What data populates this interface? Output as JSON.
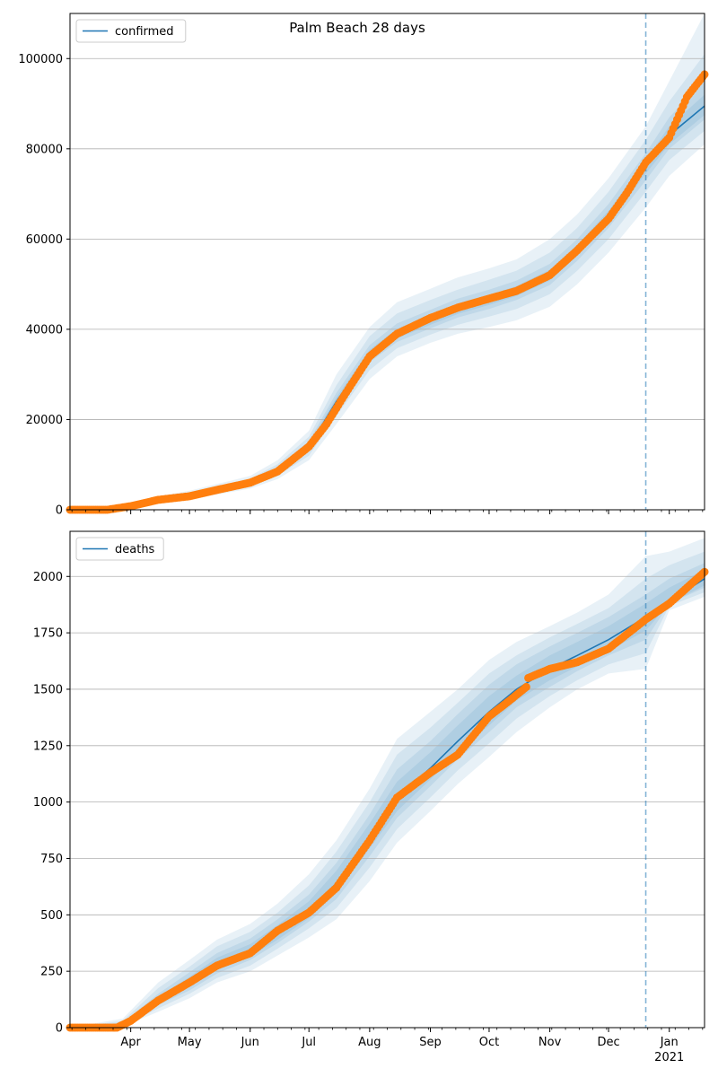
{
  "title": "Palm Beach 28 days",
  "colors": {
    "model": "#1f77b4",
    "observed": "#ff7f0e",
    "band": "#1f77b4",
    "grid": "#b0b0b0",
    "forecast_line": "#1f77b4"
  },
  "x_axis": {
    "start": "2020-03-01",
    "end": "2021-01-19",
    "month_ticks": [
      {
        "date": "2020-04-01",
        "label": "Apr"
      },
      {
        "date": "2020-05-01",
        "label": "May"
      },
      {
        "date": "2020-06-01",
        "label": "Jun"
      },
      {
        "date": "2020-07-01",
        "label": "Jul"
      },
      {
        "date": "2020-08-01",
        "label": "Aug"
      },
      {
        "date": "2020-09-01",
        "label": "Sep"
      },
      {
        "date": "2020-10-01",
        "label": "Oct"
      },
      {
        "date": "2020-11-01",
        "label": "Nov"
      },
      {
        "date": "2020-12-01",
        "label": "Dec"
      },
      {
        "date": "2021-01-01",
        "label": "Jan"
      }
    ],
    "year_label": "2021",
    "forecast_start": "2020-12-20"
  },
  "chart_data": [
    {
      "type": "line",
      "legend": "confirmed",
      "legend_position": "top-left",
      "grid": true,
      "ylim": [
        0,
        110000
      ],
      "yticks": [
        0,
        20000,
        40000,
        60000,
        80000,
        100000
      ],
      "model": {
        "dates": [
          "2020-03-01",
          "2020-03-15",
          "2020-04-01",
          "2020-04-15",
          "2020-05-01",
          "2020-05-15",
          "2020-06-01",
          "2020-06-15",
          "2020-07-01",
          "2020-07-15",
          "2020-08-01",
          "2020-08-15",
          "2020-09-01",
          "2020-09-15",
          "2020-10-01",
          "2020-10-15",
          "2020-11-01",
          "2020-11-15",
          "2020-12-01",
          "2020-12-20",
          "2021-01-01",
          "2021-01-19"
        ],
        "values": [
          0,
          100,
          900,
          2200,
          3200,
          4500,
          6000,
          8800,
          14000,
          24000,
          34500,
          39000,
          42000,
          44500,
          46500,
          48500,
          52000,
          57500,
          65000,
          76000,
          83000,
          89500
        ]
      },
      "bands": [
        {
          "upper": [
            0,
            200,
            1400,
            3000,
            4200,
            5700,
            7500,
            11000,
            17500,
            30000,
            40500,
            46000,
            49000,
            51500,
            53500,
            55500,
            60000,
            65500,
            73500,
            85000,
            95000,
            110000
          ],
          "lower": [
            0,
            50,
            600,
            1600,
            2400,
            3400,
            4700,
            6800,
            11000,
            19000,
            29000,
            34000,
            37000,
            39000,
            40500,
            42000,
            45000,
            50000,
            57000,
            67000,
            74000,
            81000
          ]
        },
        {
          "upper": [
            0,
            170,
            1200,
            2700,
            3800,
            5200,
            6900,
            10100,
            16200,
            27600,
            38500,
            43500,
            46500,
            48800,
            51000,
            53000,
            57000,
            62500,
            70500,
            82000,
            90500,
            101000
          ],
          "lower": [
            0,
            70,
            700,
            1800,
            2700,
            3800,
            5200,
            7500,
            12000,
            20800,
            31000,
            35800,
            38800,
            41000,
            42800,
            44500,
            47800,
            53000,
            60000,
            70500,
            77500,
            84000
          ]
        },
        {
          "upper": [
            0,
            140,
            1100,
            2500,
            3600,
            4900,
            6500,
            9500,
            15200,
            25900,
            36500,
            41300,
            44300,
            46800,
            48800,
            50800,
            54500,
            60000,
            67800,
            79000,
            87000,
            95000
          ],
          "lower": [
            0,
            80,
            800,
            2000,
            2900,
            4100,
            5600,
            8100,
            12900,
            22300,
            32700,
            37200,
            40200,
            42600,
            44500,
            46500,
            49800,
            55200,
            62500,
            73000,
            80000,
            86500
          ]
        },
        {
          "upper": [
            0,
            120,
            1000,
            2350,
            3400,
            4700,
            6250,
            9150,
            14600,
            24900,
            35500,
            40100,
            43100,
            45600,
            47600,
            49600,
            53200,
            58700,
            66300,
            77500,
            85000,
            92000
          ],
          "lower": [
            0,
            90,
            850,
            2100,
            3050,
            4300,
            5800,
            8450,
            13400,
            23100,
            33500,
            38000,
            41000,
            43400,
            45400,
            47400,
            50800,
            56300,
            63700,
            74500,
            81000,
            87500
          ]
        }
      ],
      "observed": {
        "dates": [
          "2020-03-01",
          "2020-03-20",
          "2020-04-01",
          "2020-04-15",
          "2020-05-01",
          "2020-05-15",
          "2020-06-01",
          "2020-06-15",
          "2020-07-01",
          "2020-07-10",
          "2020-07-20",
          "2020-08-01",
          "2020-08-15",
          "2020-09-01",
          "2020-09-15",
          "2020-10-01",
          "2020-10-15",
          "2020-11-01",
          "2020-11-15",
          "2020-12-01",
          "2020-12-10",
          "2020-12-20",
          "2021-01-01",
          "2021-01-05",
          "2021-01-10",
          "2021-01-19"
        ],
        "values": [
          0,
          0,
          800,
          2200,
          3000,
          4400,
          6000,
          8500,
          14000,
          19000,
          26000,
          34000,
          39000,
          42500,
          44800,
          46800,
          48500,
          52000,
          57500,
          64500,
          70000,
          77000,
          82500,
          86500,
          91500,
          96500
        ]
      }
    },
    {
      "type": "line",
      "legend": "deaths",
      "legend_position": "top-left",
      "grid": true,
      "ylim": [
        0,
        2200
      ],
      "yticks": [
        0,
        250,
        500,
        750,
        1000,
        1250,
        1500,
        1750,
        2000
      ],
      "model": {
        "dates": [
          "2020-03-01",
          "2020-03-28",
          "2020-04-15",
          "2020-05-01",
          "2020-05-15",
          "2020-06-01",
          "2020-06-15",
          "2020-07-01",
          "2020-07-15",
          "2020-08-01",
          "2020-08-15",
          "2020-09-01",
          "2020-09-15",
          "2020-10-01",
          "2020-10-15",
          "2020-11-01",
          "2020-11-15",
          "2020-12-01",
          "2020-12-20",
          "2021-01-01",
          "2021-01-19"
        ],
        "values": [
          0,
          10,
          120,
          200,
          280,
          340,
          420,
          520,
          640,
          850,
          1020,
          1150,
          1270,
          1400,
          1500,
          1590,
          1650,
          1720,
          1820,
          1890,
          1990
        ]
      },
      "bands": [
        {
          "upper": [
            0,
            40,
            200,
            300,
            390,
            460,
            550,
            680,
            830,
            1060,
            1280,
            1400,
            1500,
            1630,
            1710,
            1780,
            1840,
            1920,
            2090,
            2110,
            2170
          ],
          "lower": [
            0,
            5,
            70,
            130,
            200,
            250,
            320,
            400,
            480,
            650,
            820,
            960,
            1080,
            1200,
            1310,
            1420,
            1500,
            1570,
            1590,
            1850,
            1910
          ]
        },
        {
          "upper": [
            0,
            30,
            175,
            270,
            360,
            425,
            510,
            630,
            780,
            1000,
            1210,
            1330,
            1440,
            1570,
            1650,
            1730,
            1790,
            1860,
            1990,
            2050,
            2110
          ],
          "lower": [
            0,
            7,
            85,
            150,
            220,
            275,
            350,
            440,
            530,
            710,
            880,
            1020,
            1140,
            1260,
            1370,
            1470,
            1540,
            1610,
            1660,
            1870,
            1930
          ]
        },
        {
          "upper": [
            0,
            22,
            150,
            245,
            330,
            395,
            480,
            590,
            730,
            945,
            1145,
            1270,
            1390,
            1520,
            1610,
            1690,
            1750,
            1820,
            1920,
            1990,
            2060
          ],
          "lower": [
            0,
            8,
            100,
            165,
            240,
            300,
            375,
            470,
            570,
            760,
            930,
            1070,
            1190,
            1310,
            1420,
            1510,
            1580,
            1650,
            1720,
            1880,
            1950
          ]
        },
        {
          "upper": [
            0,
            16,
            135,
            225,
            310,
            370,
            455,
            560,
            695,
            905,
            1090,
            1220,
            1340,
            1470,
            1560,
            1650,
            1710,
            1780,
            1880,
            1950,
            2030
          ],
          "lower": [
            0,
            9,
            108,
            180,
            255,
            315,
            390,
            485,
            600,
            795,
            960,
            1100,
            1220,
            1340,
            1450,
            1540,
            1600,
            1670,
            1760,
            1880,
            1960
          ]
        }
      ],
      "observed": {
        "dates": [
          "2020-03-01",
          "2020-03-25",
          "2020-04-01",
          "2020-04-15",
          "2020-05-01",
          "2020-05-15",
          "2020-06-01",
          "2020-06-15",
          "2020-07-01",
          "2020-07-15",
          "2020-08-01",
          "2020-08-15",
          "2020-09-01",
          "2020-09-15",
          "2020-10-01",
          "2020-10-10",
          "2020-10-20",
          "2020-10-21",
          "2020-11-01",
          "2020-11-15",
          "2020-12-01",
          "2020-12-20",
          "2021-01-01",
          "2021-01-10",
          "2021-01-19"
        ],
        "values": [
          0,
          0,
          30,
          120,
          200,
          275,
          330,
          430,
          510,
          620,
          830,
          1020,
          1130,
          1210,
          1380,
          1440,
          1510,
          1550,
          1590,
          1620,
          1680,
          1810,
          1880,
          1950,
          2020
        ]
      }
    }
  ]
}
